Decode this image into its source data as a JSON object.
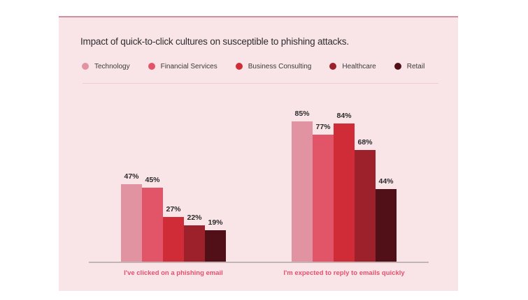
{
  "title": "Impact of quick-to-click cultures on susceptible to phishing attacks.",
  "colors": {
    "page_bg": "#ffffff",
    "card_bg": "#f9e5e7",
    "card_top_border": "#d18da2",
    "divider": "#f0ccd1",
    "title_text": "#2e2c2e",
    "legend_text": "#3b3a3c",
    "value_text": "#2b292b",
    "category_text": "#e5506e",
    "axis_line": "#c3b4b6"
  },
  "chart_data": {
    "type": "bar",
    "title": "Impact of quick-to-click cultures on susceptible to phishing attacks.",
    "categories": [
      "I've clicked on a phishing email",
      "I'm expected to reply to emails quickly"
    ],
    "series": [
      {
        "name": "Technology",
        "color": "#e293a2",
        "values": [
          47,
          85
        ]
      },
      {
        "name": "Financial Services",
        "color": "#e25568",
        "values": [
          45,
          77
        ]
      },
      {
        "name": "Business Consulting",
        "color": "#cf2c38",
        "values": [
          27,
          84
        ]
      },
      {
        "name": "Healthcare",
        "color": "#9c212b",
        "values": [
          22,
          68
        ]
      },
      {
        "name": "Retail",
        "color": "#511017",
        "values": [
          19,
          44
        ]
      }
    ],
    "value_suffix": "%",
    "xlabel": "",
    "ylabel": "",
    "ylim": [
      0,
      100
    ],
    "grid": false,
    "legend_position": "top",
    "data_labels": true
  }
}
